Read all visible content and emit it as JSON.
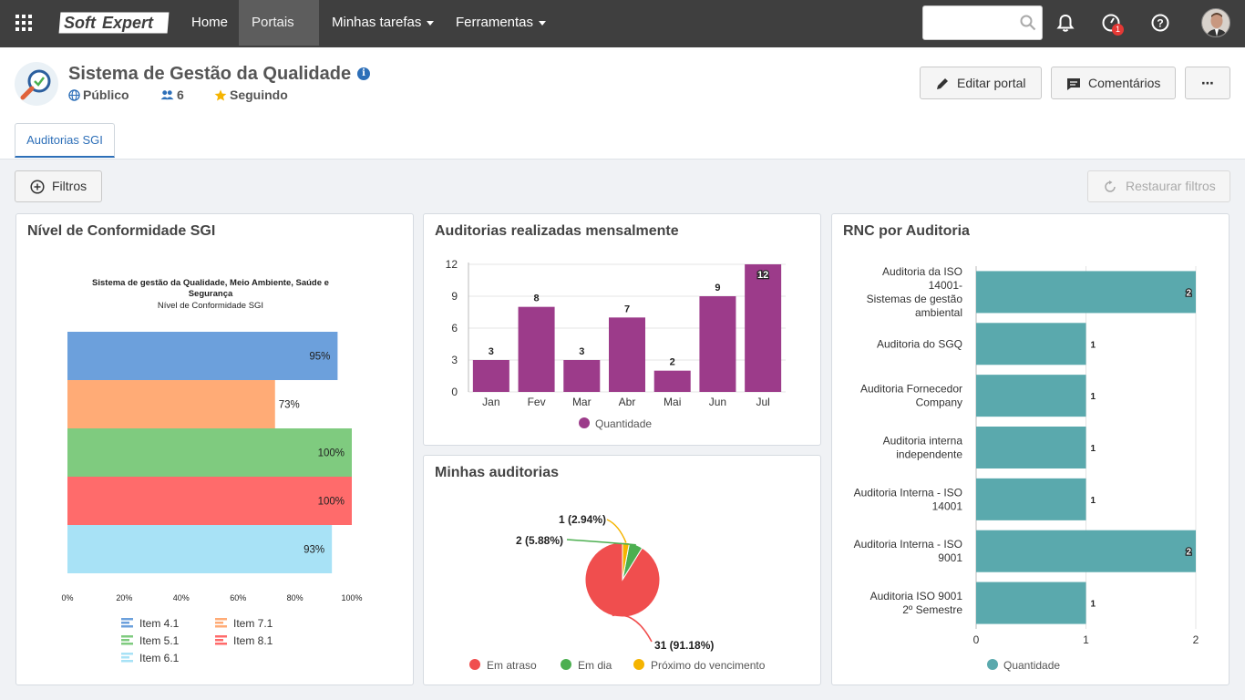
{
  "topbar": {
    "logo_text_1": "Soft",
    "logo_text_2": "Expert",
    "nav": [
      {
        "label": "Home",
        "dropdown": false
      },
      {
        "label": "Portais",
        "dropdown": true,
        "active": true
      },
      {
        "label": "Minhas tarefas",
        "dropdown": true
      },
      {
        "label": "Ferramentas",
        "dropdown": true
      }
    ],
    "search_value": "",
    "notification_badge": "1"
  },
  "header": {
    "title": "Sistema de Gestão da Qualidade",
    "visibility": "Público",
    "members": "6",
    "following": "Seguindo",
    "btn_edit": "Editar portal",
    "btn_comments": "Comentários",
    "btn_more": "⋯"
  },
  "tabs": [
    {
      "label": "Auditorias SGI",
      "active": true
    }
  ],
  "filters": {
    "btn_filters": "Filtros",
    "btn_restore": "Restaurar filtros"
  },
  "colors": {
    "accent": "#2d6fb8",
    "purple": "#9c3b8a",
    "teal": "#5aa9ad",
    "red": "#f04e4e",
    "green": "#4caf50",
    "yellow": "#f5b400"
  },
  "chart_data": [
    {
      "type": "bar",
      "orientation": "horizontal",
      "panel_title": "Nível de Conformidade SGI",
      "title": "Sistema de gestão da Qualidade, Meio Ambiente, Saúde e Segurança",
      "subtitle": "Nível de Conformidade SGI",
      "xlim": [
        0,
        100
      ],
      "xticks": [
        "0%",
        "20%",
        "40%",
        "60%",
        "80%",
        "100%"
      ],
      "series": [
        {
          "name": "Item 4.1",
          "value": 95,
          "label": "95%",
          "color": "#6ca0dc"
        },
        {
          "name": "Item 7.1",
          "value": 73,
          "label": "73%",
          "color": "#ffab76"
        },
        {
          "name": "Item 5.1",
          "value": 100,
          "label": "100%",
          "color": "#7fcb7f"
        },
        {
          "name": "Item 8.1",
          "value": 100,
          "label": "100%",
          "color": "#ff6b6b"
        },
        {
          "name": "Item 6.1",
          "value": 93,
          "label": "93%",
          "color": "#a8e2f6"
        }
      ],
      "legend_position": "bottom"
    },
    {
      "type": "bar",
      "panel_title": "Auditorias realizadas mensalmente",
      "categories": [
        "Jan",
        "Fev",
        "Mar",
        "Abr",
        "Mai",
        "Jun",
        "Jul"
      ],
      "values": [
        3,
        8,
        3,
        7,
        2,
        9,
        12
      ],
      "ylim": [
        0,
        12
      ],
      "yticks": [
        "0",
        "3",
        "6",
        "9",
        "12"
      ],
      "series_name": "Quantidade",
      "legend_position": "bottom"
    },
    {
      "type": "pie",
      "panel_title": "Minhas auditorias",
      "slices": [
        {
          "name": "Em atraso",
          "value": 31,
          "label": "31 (91.18%)",
          "color": "#f04e4e"
        },
        {
          "name": "Em dia",
          "value": 2,
          "label": "2 (5.88%)",
          "color": "#4caf50"
        },
        {
          "name": "Próximo do vencimento",
          "value": 1,
          "label": "1 (2.94%)",
          "color": "#f5b400"
        }
      ],
      "legend_position": "bottom"
    },
    {
      "type": "bar",
      "orientation": "horizontal",
      "panel_title": "RNC por Auditoria",
      "categories": [
        [
          "Auditoria da ISO",
          "14001-",
          "Sistemas de gestão",
          "ambiental"
        ],
        [
          "Auditoria do SGQ"
        ],
        [
          "Auditoria Fornecedor",
          "Company"
        ],
        [
          "Auditoria interna",
          "independente"
        ],
        [
          "Auditoria Interna - ISO",
          "14001"
        ],
        [
          "Auditoria Interna - ISO",
          "9001"
        ],
        [
          "Auditoria ISO 9001",
          "2º Semestre"
        ]
      ],
      "values": [
        2,
        1,
        1,
        1,
        1,
        2,
        1
      ],
      "xlim": [
        0,
        2
      ],
      "xticks": [
        "0",
        "1",
        "2"
      ],
      "series_name": "Quantidade",
      "legend_position": "bottom"
    }
  ]
}
